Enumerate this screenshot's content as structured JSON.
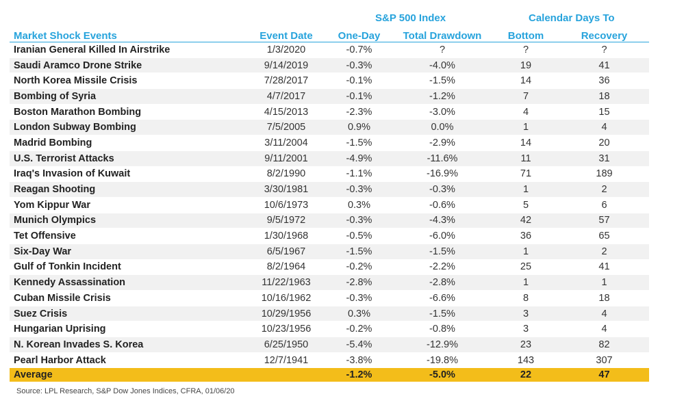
{
  "header": {
    "group1_label": "S&P 500 Index",
    "group2_label": "Calendar Days To",
    "columns": [
      "Market Shock Events",
      "Event Date",
      "One-Day",
      "Total Drawdown",
      "Bottom",
      "Recovery"
    ]
  },
  "rows": [
    {
      "event": "Iranian General Killed In Airstrike",
      "date": "1/3/2020",
      "one_day": "-0.7%",
      "drawdown": "?",
      "bottom": "?",
      "recovery": "?"
    },
    {
      "event": "Saudi Aramco Drone Strike",
      "date": "9/14/2019",
      "one_day": "-0.3%",
      "drawdown": "-4.0%",
      "bottom": "19",
      "recovery": "41"
    },
    {
      "event": "North Korea Missile Crisis",
      "date": "7/28/2017",
      "one_day": "-0.1%",
      "drawdown": "-1.5%",
      "bottom": "14",
      "recovery": "36"
    },
    {
      "event": "Bombing of Syria",
      "date": "4/7/2017",
      "one_day": "-0.1%",
      "drawdown": "-1.2%",
      "bottom": "7",
      "recovery": "18"
    },
    {
      "event": "Boston Marathon Bombing",
      "date": "4/15/2013",
      "one_day": "-2.3%",
      "drawdown": "-3.0%",
      "bottom": "4",
      "recovery": "15"
    },
    {
      "event": "London Subway Bombing",
      "date": "7/5/2005",
      "one_day": "0.9%",
      "drawdown": "0.0%",
      "bottom": "1",
      "recovery": "4"
    },
    {
      "event": "Madrid Bombing",
      "date": "3/11/2004",
      "one_day": "-1.5%",
      "drawdown": "-2.9%",
      "bottom": "14",
      "recovery": "20"
    },
    {
      "event": "U.S. Terrorist Attacks",
      "date": "9/11/2001",
      "one_day": "-4.9%",
      "drawdown": "-11.6%",
      "bottom": "11",
      "recovery": "31"
    },
    {
      "event": "Iraq's Invasion of Kuwait",
      "date": "8/2/1990",
      "one_day": "-1.1%",
      "drawdown": "-16.9%",
      "bottom": "71",
      "recovery": "189"
    },
    {
      "event": "Reagan Shooting",
      "date": "3/30/1981",
      "one_day": "-0.3%",
      "drawdown": "-0.3%",
      "bottom": "1",
      "recovery": "2"
    },
    {
      "event": "Yom Kippur War",
      "date": "10/6/1973",
      "one_day": "0.3%",
      "drawdown": "-0.6%",
      "bottom": "5",
      "recovery": "6"
    },
    {
      "event": "Munich Olympics",
      "date": "9/5/1972",
      "one_day": "-0.3%",
      "drawdown": "-4.3%",
      "bottom": "42",
      "recovery": "57"
    },
    {
      "event": "Tet Offensive",
      "date": "1/30/1968",
      "one_day": "-0.5%",
      "drawdown": "-6.0%",
      "bottom": "36",
      "recovery": "65"
    },
    {
      "event": "Six-Day War",
      "date": "6/5/1967",
      "one_day": "-1.5%",
      "drawdown": "-1.5%",
      "bottom": "1",
      "recovery": "2"
    },
    {
      "event": "Gulf of Tonkin Incident",
      "date": "8/2/1964",
      "one_day": "-0.2%",
      "drawdown": "-2.2%",
      "bottom": "25",
      "recovery": "41"
    },
    {
      "event": "Kennedy Assassination",
      "date": "11/22/1963",
      "one_day": "-2.8%",
      "drawdown": "-2.8%",
      "bottom": "1",
      "recovery": "1"
    },
    {
      "event": "Cuban Missile Crisis",
      "date": "10/16/1962",
      "one_day": "-0.3%",
      "drawdown": "-6.6%",
      "bottom": "8",
      "recovery": "18"
    },
    {
      "event": "Suez Crisis",
      "date": "10/29/1956",
      "one_day": "0.3%",
      "drawdown": "-1.5%",
      "bottom": "3",
      "recovery": "4"
    },
    {
      "event": "Hungarian Uprising",
      "date": "10/23/1956",
      "one_day": "-0.2%",
      "drawdown": "-0.8%",
      "bottom": "3",
      "recovery": "4"
    },
    {
      "event": "N. Korean Invades S. Korea",
      "date": "6/25/1950",
      "one_day": "-5.4%",
      "drawdown": "-12.9%",
      "bottom": "23",
      "recovery": "82"
    },
    {
      "event": "Pearl Harbor Attack",
      "date": "12/7/1941",
      "one_day": "-3.8%",
      "drawdown": "-19.8%",
      "bottom": "143",
      "recovery": "307"
    }
  ],
  "average": {
    "label": "Average",
    "date": "",
    "one_day": "-1.2%",
    "drawdown": "-5.0%",
    "bottom": "22",
    "recovery": "47"
  },
  "source": "Source: LPL Research, S&P Dow Jones Indices, CFRA, 01/06/20",
  "colors": {
    "header_blue": "#27a3dc",
    "average_highlight": "#f3bd1a",
    "stripe": "#f1f1f1"
  }
}
